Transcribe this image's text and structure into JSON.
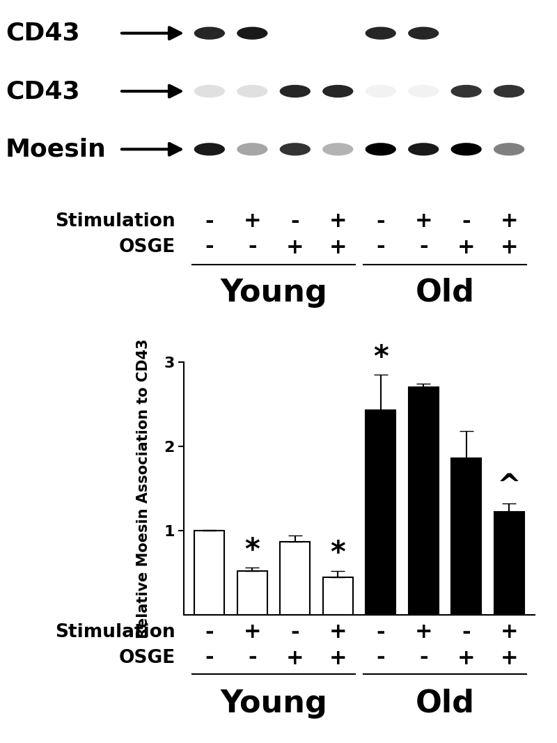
{
  "blot": {
    "rows": [
      {
        "label": "CD43",
        "bands": [
          0.85,
          0.9,
          0,
          0,
          0.85,
          0.85,
          0,
          0
        ]
      },
      {
        "label": "CD43",
        "bands": [
          0.12,
          0.12,
          0.85,
          0.85,
          0.05,
          0.05,
          0.8,
          0.8
        ]
      },
      {
        "label": "Moesin",
        "bands": [
          0.9,
          0.35,
          0.8,
          0.3,
          1,
          0.9,
          1,
          0.5
        ]
      }
    ],
    "condition_rows": [
      {
        "name": "Stimulation",
        "labels": [
          "-",
          "+",
          "-",
          "+",
          "-",
          "+",
          "-",
          "+"
        ]
      },
      {
        "name": "OSGE",
        "labels": [
          "-",
          "-",
          "+",
          "+",
          "-",
          "-",
          "+",
          "+"
        ]
      }
    ],
    "groups": {
      "labels": [
        "Young",
        "Old"
      ],
      "sizes": [
        4,
        4
      ]
    }
  },
  "chart_data": {
    "type": "bar",
    "y_label": "Relative Moesin Association to CD43",
    "categories": [
      null,
      null,
      null,
      null,
      null,
      null,
      null,
      null
    ],
    "values": [
      1.0,
      0.52,
      0.87,
      0.45,
      2.43,
      2.7,
      1.86,
      1.22
    ],
    "error": [
      0.01,
      0.04,
      0.07,
      0.07,
      0.42,
      0.04,
      0.32,
      0.1
    ],
    "colors": [
      "#ffffff",
      "#ffffff",
      "#ffffff",
      "#ffffff",
      "#000000",
      "#000000",
      "#000000",
      "#000000"
    ],
    "ylim": [
      0,
      3
    ],
    "yticks": [
      1,
      2,
      3
    ],
    "annotations": [
      {
        "index": 1,
        "text": "*"
      },
      {
        "index": 3,
        "text": "*"
      },
      {
        "index": 4,
        "text": "*"
      },
      {
        "index": 7,
        "text": "^"
      }
    ],
    "condition_rows": [
      {
        "name": "Stimulation",
        "labels": [
          "-",
          "+",
          "-",
          "+",
          "-",
          "+",
          "-",
          "+"
        ]
      },
      {
        "name": "OSGE",
        "labels": [
          "-",
          "-",
          "+",
          "+",
          "-",
          "-",
          "+",
          "+"
        ]
      }
    ],
    "groups": {
      "labels": [
        "Young",
        "Old"
      ],
      "sizes": [
        4,
        4
      ]
    }
  }
}
